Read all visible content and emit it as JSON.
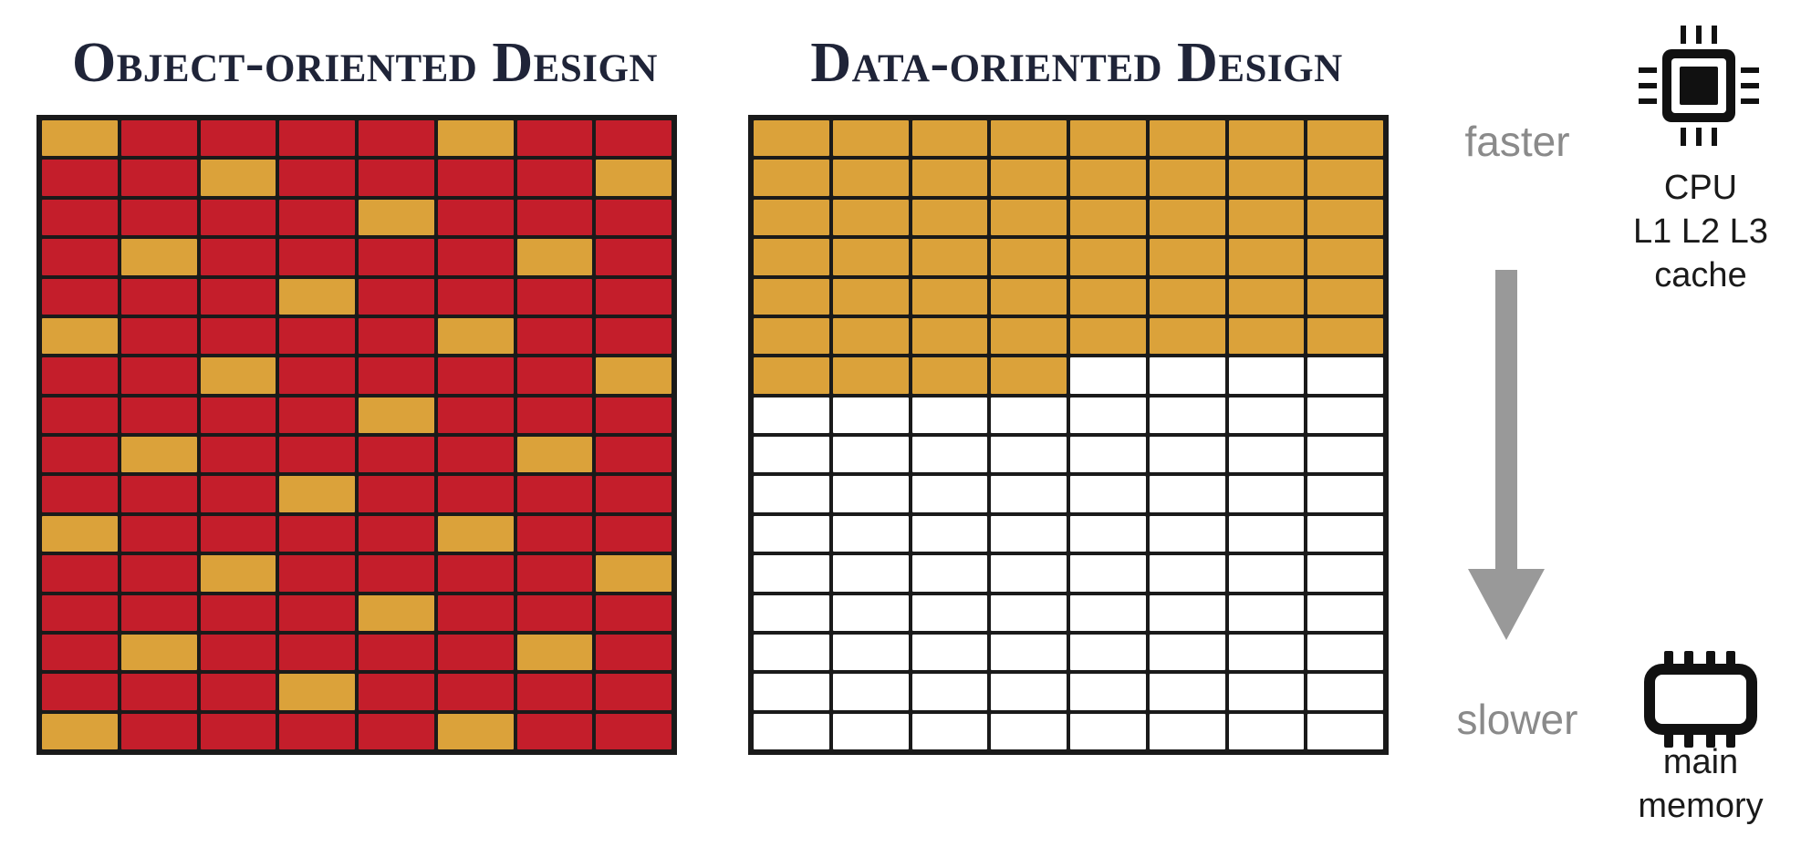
{
  "titles": {
    "left": "Object-oriented Design",
    "right": "Data-oriented Design"
  },
  "grid": {
    "rows": 16,
    "cols": 8,
    "colors": {
      "hot": "#dba23a",
      "cold": "#c41e2b",
      "empty": "#ffffff",
      "frame": "#1a1a1a"
    },
    "oop_hot_cells": [
      [
        0,
        0
      ],
      [
        0,
        5
      ],
      [
        1,
        2
      ],
      [
        1,
        7
      ],
      [
        2,
        4
      ],
      [
        3,
        1
      ],
      [
        3,
        6
      ],
      [
        4,
        3
      ],
      [
        5,
        0
      ],
      [
        5,
        5
      ],
      [
        6,
        2
      ],
      [
        6,
        7
      ],
      [
        7,
        4
      ],
      [
        8,
        1
      ],
      [
        8,
        6
      ],
      [
        9,
        3
      ],
      [
        10,
        0
      ],
      [
        10,
        5
      ],
      [
        11,
        2
      ],
      [
        11,
        7
      ],
      [
        12,
        4
      ],
      [
        13,
        1
      ],
      [
        13,
        6
      ],
      [
        14,
        3
      ],
      [
        15,
        0
      ],
      [
        15,
        5
      ]
    ],
    "dod_filled_count": 52
  },
  "speed_scale": {
    "top_label": "faster",
    "bottom_label": "slower",
    "arrow_color": "#999999"
  },
  "cpu": {
    "icon": "cpu-chip-icon",
    "lines": [
      "CPU",
      "L1 L2 L3",
      "cache"
    ]
  },
  "memory": {
    "icon": "memory-module-icon",
    "lines": [
      "main",
      "memory"
    ]
  }
}
